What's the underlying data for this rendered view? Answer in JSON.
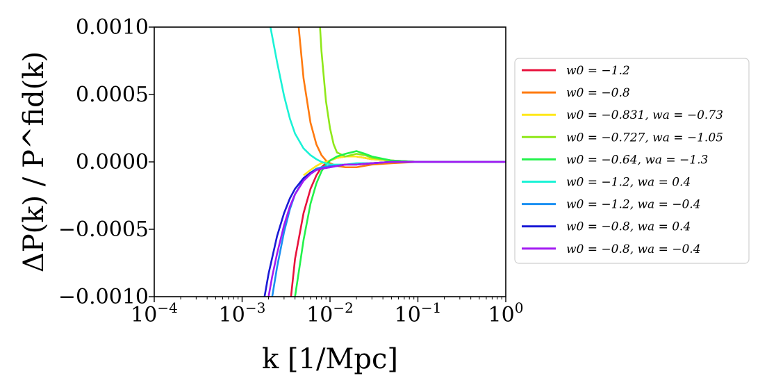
{
  "chart_data": {
    "type": "line",
    "title": "",
    "xlabel": "k [1/Mpc]",
    "ylabel": "ΔP(k) / P^fid(k)",
    "xscale": "log",
    "xlim": [
      0.0001,
      1
    ],
    "ylim": [
      -0.001,
      0.001
    ],
    "xticks": [
      {
        "value": 0.0001,
        "base": "10",
        "exp": "−4"
      },
      {
        "value": 0.001,
        "base": "10",
        "exp": "−3"
      },
      {
        "value": 0.01,
        "base": "10",
        "exp": "−2"
      },
      {
        "value": 0.1,
        "base": "10",
        "exp": "−1"
      },
      {
        "value": 1,
        "base": "10",
        "exp": "0"
      }
    ],
    "yticks": [
      {
        "value": 0.001,
        "label": "0.0010"
      },
      {
        "value": 0.0005,
        "label": "0.0005"
      },
      {
        "value": 0.0,
        "label": "0.0000"
      },
      {
        "value": -0.0005,
        "label": "−0.0005"
      },
      {
        "value": -0.001,
        "label": "−0.0010"
      }
    ],
    "legend_position": "right-outside",
    "series": [
      {
        "name": "w0 = −1.2",
        "color": "#e8123c",
        "x": [
          0.0036,
          0.004,
          0.005,
          0.006,
          0.007,
          0.008,
          0.009,
          0.01,
          0.012,
          0.015,
          0.02,
          0.03,
          0.05,
          0.1,
          0.2,
          0.5,
          1
        ],
        "y": [
          -0.001,
          -0.00072,
          -0.00038,
          -0.0002,
          -0.0001,
          -4e-05,
          -1e-05,
          1e-05,
          3e-05,
          4e-05,
          4e-05,
          2e-05,
          1e-05,
          0.0,
          0.0,
          0.0,
          0.0
        ]
      },
      {
        "name": "w0 = −0.8",
        "color": "#ff7a0f",
        "x": [
          0.0044,
          0.005,
          0.006,
          0.007,
          0.008,
          0.009,
          0.01,
          0.012,
          0.015,
          0.02,
          0.03,
          0.05,
          0.1,
          0.2,
          0.5,
          1
        ],
        "y": [
          0.001,
          0.00062,
          0.00029,
          0.00013,
          5e-05,
          1e-05,
          -1e-05,
          -3e-05,
          -4e-05,
          -4e-05,
          -2e-05,
          -1e-05,
          0.0,
          0.0,
          0.0,
          0.0
        ]
      },
      {
        "name": "w0 = −0.831,  wa = −0.73",
        "color": "#ffe81a",
        "x": [
          0.005,
          0.006,
          0.007,
          0.008,
          0.009,
          0.01,
          0.012,
          0.015,
          0.02,
          0.03,
          0.05,
          0.1,
          0.2,
          0.5,
          1
        ],
        "y": [
          -0.0001,
          -6e-05,
          -3e-05,
          -1e-05,
          0.0,
          1e-05,
          3e-05,
          4e-05,
          4e-05,
          2e-05,
          1e-05,
          0.0,
          0.0,
          0.0,
          0.0
        ]
      },
      {
        "name": "w0 = −0.727,  wa = −1.05",
        "color": "#8fe81a",
        "x": [
          0.0077,
          0.008,
          0.009,
          0.01,
          0.011,
          0.012,
          0.015,
          0.02,
          0.025,
          0.03,
          0.05,
          0.1,
          0.2,
          0.5,
          1
        ],
        "y": [
          0.001,
          0.00082,
          0.00045,
          0.00025,
          0.00013,
          7e-05,
          4e-05,
          6e-05,
          5e-05,
          3e-05,
          1e-05,
          0.0,
          0.0,
          0.0,
          0.0
        ]
      },
      {
        "name": "w0 = −0.64,  wa = −1.3",
        "color": "#22f24a",
        "x": [
          0.004,
          0.0045,
          0.005,
          0.006,
          0.007,
          0.008,
          0.009,
          0.01,
          0.012,
          0.015,
          0.02,
          0.025,
          0.03,
          0.05,
          0.1,
          0.2,
          0.5,
          1
        ],
        "y": [
          -0.001,
          -0.00078,
          -0.00058,
          -0.00031,
          -0.00016,
          -7e-05,
          -2e-05,
          1e-05,
          4e-05,
          6e-05,
          8e-05,
          6e-05,
          4e-05,
          1e-05,
          0.0,
          0.0,
          0.0,
          0.0
        ]
      },
      {
        "name": "w0 = −1.2,  wa = 0.4",
        "color": "#1af2d6",
        "x": [
          0.0021,
          0.0025,
          0.003,
          0.0035,
          0.004,
          0.005,
          0.006,
          0.007,
          0.008,
          0.01,
          0.012,
          0.015,
          0.02,
          0.03,
          0.05,
          0.1,
          1
        ],
        "y": [
          0.001,
          0.00074,
          0.00049,
          0.00032,
          0.00021,
          0.0001,
          5e-05,
          2e-05,
          0.0,
          -2e-05,
          -2e-05,
          -2e-05,
          -1e-05,
          -1e-05,
          0.0,
          0.0,
          0.0
        ]
      },
      {
        "name": "w0 = −1.2,  wa = −0.4",
        "color": "#1a8ff2",
        "x": [
          0.0022,
          0.0025,
          0.003,
          0.0035,
          0.004,
          0.005,
          0.006,
          0.007,
          0.008,
          0.01,
          0.012,
          0.015,
          0.02,
          0.03,
          0.05,
          0.1,
          1
        ],
        "y": [
          -0.001,
          -0.00078,
          -0.00052,
          -0.00035,
          -0.00024,
          -0.00013,
          -8e-05,
          -5e-05,
          -4e-05,
          -3e-05,
          -3e-05,
          -2e-05,
          -2e-05,
          -1e-05,
          0.0,
          0.0,
          0.0
        ]
      },
      {
        "name": "w0 = −0.8,  wa = 0.4",
        "color": "#1a1ad6",
        "x": [
          0.0018,
          0.002,
          0.0025,
          0.003,
          0.0035,
          0.004,
          0.005,
          0.006,
          0.007,
          0.008,
          0.01,
          0.012,
          0.015,
          0.02,
          0.03,
          0.05,
          0.1,
          1
        ],
        "y": [
          -0.001,
          -0.00083,
          -0.00055,
          -0.00038,
          -0.00027,
          -0.0002,
          -0.00012,
          -8e-05,
          -6e-05,
          -5e-05,
          -4e-05,
          -3e-05,
          -2e-05,
          -2e-05,
          -1e-05,
          0.0,
          0.0,
          0.0
        ]
      },
      {
        "name": "w0 = −0.8,  wa = −0.4",
        "color": "#a31af2",
        "x": [
          0.002,
          0.0022,
          0.0025,
          0.003,
          0.0035,
          0.004,
          0.005,
          0.006,
          0.007,
          0.008,
          0.01,
          0.012,
          0.015,
          0.02,
          0.03,
          0.05,
          0.1,
          1
        ],
        "y": [
          -0.001,
          -0.00085,
          -0.00068,
          -0.00047,
          -0.00033,
          -0.00024,
          -0.00014,
          -9e-05,
          -6e-05,
          -5e-05,
          -4e-05,
          -3e-05,
          -2e-05,
          -2e-05,
          -1e-05,
          0.0,
          0.0,
          0.0
        ]
      }
    ]
  }
}
